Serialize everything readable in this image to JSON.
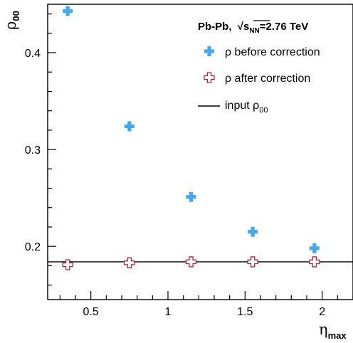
{
  "chart_data": {
    "type": "scatter",
    "title": "",
    "xlabel": {
      "symbol": "η",
      "subscript": "max"
    },
    "ylabel": {
      "symbol": "ρ",
      "subscript": "00"
    },
    "xlim": [
      0.22,
      2.2
    ],
    "ylim": [
      0.145,
      0.45
    ],
    "x_ticks": [
      {
        "value": 0.5,
        "label": "0.5"
      },
      {
        "value": 1.0,
        "label": "1"
      },
      {
        "value": 1.5,
        "label": "1.5"
      },
      {
        "value": 2.0,
        "label": "2"
      }
    ],
    "y_ticks": [
      {
        "value": 0.2,
        "label": "0.2"
      },
      {
        "value": 0.3,
        "label": "0.3"
      },
      {
        "value": 0.4,
        "label": "0.4"
      }
    ],
    "grid": false,
    "legend_position": "top-right",
    "legend_header": {
      "system": "Pb-Pb,",
      "sqrt_var": "s",
      "sqrt_sub": "NN",
      "energy": "=2.76 TeV"
    },
    "series": [
      {
        "name": "ρ before correction",
        "marker": "filled-cross",
        "color": "#3fa9f5",
        "x": [
          0.35,
          0.75,
          1.15,
          1.55,
          1.95
        ],
        "y": [
          0.443,
          0.324,
          0.251,
          0.215,
          0.198
        ]
      },
      {
        "name": "ρ after correction",
        "marker": "open-cross",
        "color": "#b22234",
        "x": [
          0.35,
          0.75,
          1.15,
          1.55,
          1.95
        ],
        "y": [
          0.181,
          0.183,
          0.184,
          0.184,
          0.184
        ]
      }
    ],
    "reference_line": {
      "name": "input ρ",
      "name_sub": "00",
      "y": 0.184,
      "color": "#000000"
    }
  }
}
